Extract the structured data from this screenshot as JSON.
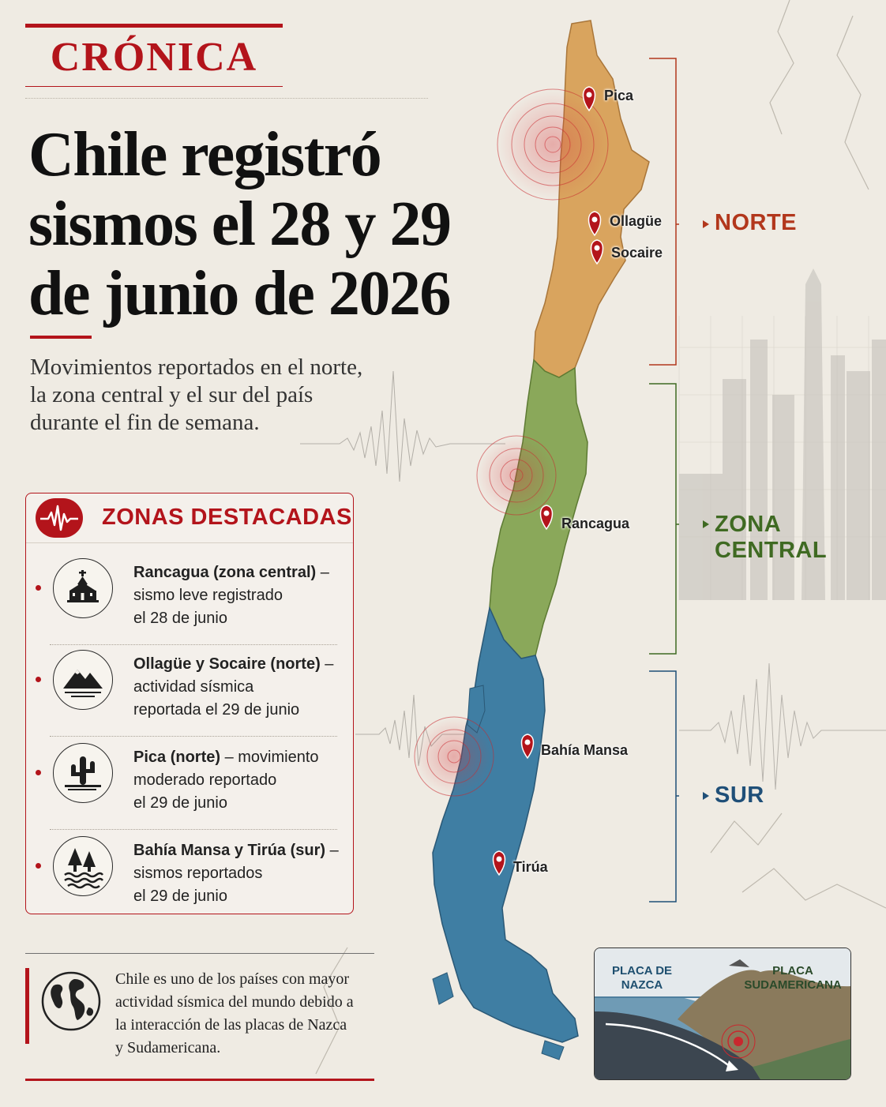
{
  "header": {
    "brand": "CRÓNICA",
    "headline_lines": [
      "Chile registró",
      "sismos el 28 y 29",
      "de junio de 2026"
    ],
    "subhead_lines": [
      "Movimientos reportados en el norte,",
      "la zona central y el sur del país",
      "durante el fin de semana."
    ]
  },
  "zones": {
    "title": "ZONAS DESTACADAS",
    "badge_icon": "seismograph-icon",
    "items": [
      {
        "icon": "church-icon",
        "place": "Rancagua (zona central)",
        "dash": " –",
        "lines": [
          "sismo leve registrado",
          "el 28 de junio"
        ]
      },
      {
        "icon": "mountains-icon",
        "place": "Ollagüe y Socaire (norte)",
        "dash": " –",
        "lines": [
          "actividad sísmica",
          "reportada el 29 de junio"
        ]
      },
      {
        "icon": "cactus-icon",
        "place": "Pica (norte)",
        "dash": " – movimiento",
        "lines": [
          "moderado reportado",
          "el 29 de junio"
        ]
      },
      {
        "icon": "trees-water-icon",
        "place": "Bahía Mansa y Tirúa (sur)",
        "dash": " –",
        "lines": [
          "sismos reportados",
          "el 29 de junio"
        ]
      }
    ]
  },
  "fact": {
    "icon": "globe-icon",
    "lines": [
      "Chile es uno de los países con mayor",
      "actividad sísmica del mundo debido a",
      "la interacción de las placas de Nazca",
      "y Sudamericana."
    ]
  },
  "map": {
    "cities": [
      "Pica",
      "Ollagüe",
      "Socaire",
      "Rancagua",
      "Bahía Mansa",
      "Tirúa"
    ],
    "regions": {
      "norte": {
        "label": "NORTE",
        "color": "#b2371c"
      },
      "central": {
        "label_lines": [
          "ZONA",
          "CENTRAL"
        ],
        "color": "#3f6a22"
      },
      "sur": {
        "label": "SUR",
        "color": "#1f4f78"
      }
    },
    "colors": {
      "norte": "#d9a45e",
      "central": "#8aa85a",
      "sur": "#3f7ea3",
      "marker": "#b3141b"
    }
  },
  "plates": {
    "nazca_lines": [
      "PLACA DE",
      "NAZCA"
    ],
    "sudamericana_lines": [
      "PLACA",
      "SUDAMERICANA"
    ]
  }
}
